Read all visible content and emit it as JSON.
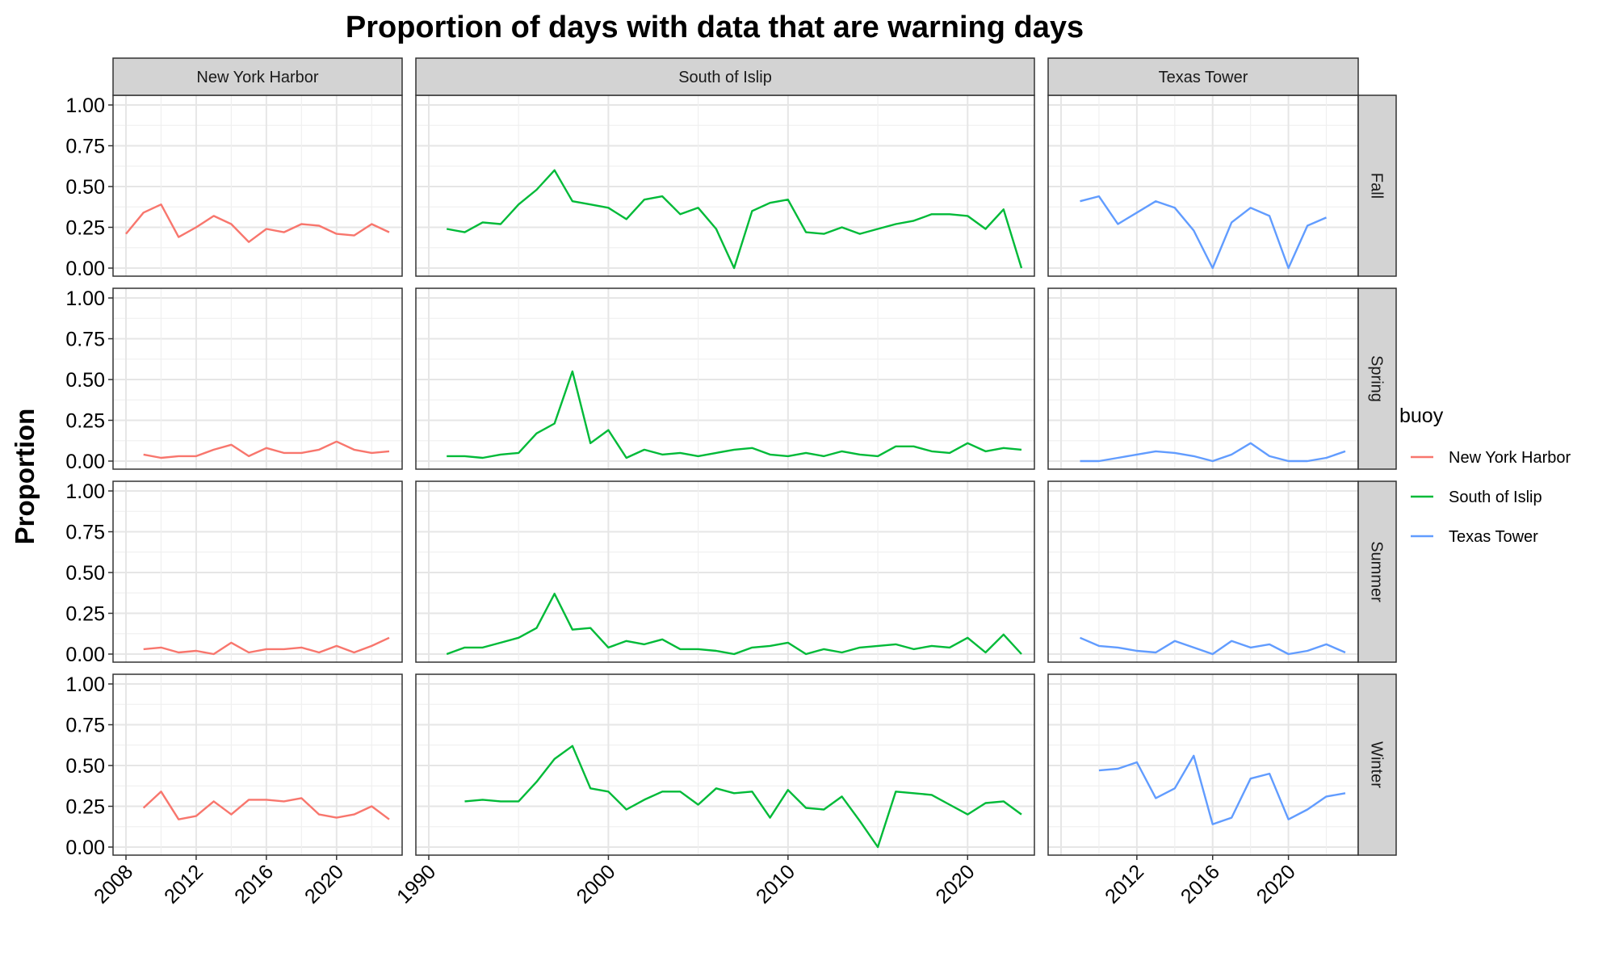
{
  "chart_data": {
    "type": "line",
    "title": "Proportion of days with data that are warning days",
    "xlabel": "",
    "ylabel": "Proportion",
    "ylim": [
      0,
      1
    ],
    "y_ticks": [
      "0.00",
      "0.25",
      "0.50",
      "0.75",
      "1.00"
    ],
    "grid": true,
    "legend": {
      "title": "buoy",
      "position": "right",
      "entries": [
        {
          "name": "New York Harbor",
          "color": "#F8766D"
        },
        {
          "name": "South of Islip",
          "color": "#00BA38"
        },
        {
          "name": "Texas Tower",
          "color": "#619CFF"
        }
      ]
    },
    "facet_columns": [
      {
        "name": "New York Harbor",
        "xlim": [
          2008,
          2023
        ],
        "x_ticks": [
          2008,
          2012,
          2016,
          2020
        ]
      },
      {
        "name": "South of Islip",
        "xlim": [
          1990,
          2023
        ],
        "x_ticks": [
          1990,
          2000,
          2010,
          2020
        ]
      },
      {
        "name": "Texas Tower",
        "xlim": [
          2008,
          2023
        ],
        "x_ticks": [
          2012,
          2016,
          2020
        ]
      }
    ],
    "facet_rows": [
      "Fall",
      "Spring",
      "Summer",
      "Winter"
    ],
    "series": [
      {
        "name": "New York Harbor",
        "facet_row": "Fall",
        "x": [
          2008,
          2009,
          2010,
          2011,
          2012,
          2013,
          2014,
          2015,
          2016,
          2017,
          2018,
          2019,
          2020,
          2021,
          2022,
          2023
        ],
        "y": [
          0.21,
          0.34,
          0.39,
          0.19,
          0.25,
          0.32,
          0.27,
          0.16,
          0.24,
          0.22,
          0.27,
          0.26,
          0.21,
          0.2,
          0.27,
          0.22
        ]
      },
      {
        "name": "New York Harbor",
        "facet_row": "Spring",
        "x": [
          2009,
          2010,
          2011,
          2012,
          2013,
          2014,
          2015,
          2016,
          2017,
          2018,
          2019,
          2020,
          2021,
          2022,
          2023
        ],
        "y": [
          0.04,
          0.02,
          0.03,
          0.03,
          0.07,
          0.1,
          0.03,
          0.08,
          0.05,
          0.05,
          0.07,
          0.12,
          0.07,
          0.05,
          0.06
        ]
      },
      {
        "name": "New York Harbor",
        "facet_row": "Summer",
        "x": [
          2009,
          2010,
          2011,
          2012,
          2013,
          2014,
          2015,
          2016,
          2017,
          2018,
          2019,
          2020,
          2021,
          2022,
          2023
        ],
        "y": [
          0.03,
          0.04,
          0.01,
          0.02,
          0.0,
          0.07,
          0.01,
          0.03,
          0.03,
          0.04,
          0.01,
          0.05,
          0.01,
          0.05,
          0.1
        ]
      },
      {
        "name": "New York Harbor",
        "facet_row": "Winter",
        "x": [
          2009,
          2010,
          2011,
          2012,
          2013,
          2014,
          2015,
          2016,
          2017,
          2018,
          2019,
          2020,
          2021,
          2022,
          2023
        ],
        "y": [
          0.24,
          0.34,
          0.17,
          0.19,
          0.28,
          0.2,
          0.29,
          0.29,
          0.28,
          0.3,
          0.2,
          0.18,
          0.2,
          0.25,
          0.17
        ]
      },
      {
        "name": "South of Islip",
        "facet_row": "Fall",
        "x": [
          1991,
          1992,
          1993,
          1994,
          1995,
          1996,
          1997,
          1998,
          1999,
          2000,
          2001,
          2002,
          2003,
          2004,
          2005,
          2006,
          2007,
          2008,
          2009,
          2010,
          2011,
          2012,
          2013,
          2014,
          2015,
          2016,
          2017,
          2018,
          2019,
          2020,
          2021,
          2022,
          2023
        ],
        "y": [
          0.24,
          0.22,
          0.28,
          0.27,
          0.39,
          0.48,
          0.6,
          0.41,
          0.39,
          0.37,
          0.3,
          0.42,
          0.44,
          0.33,
          0.37,
          0.24,
          0.0,
          0.35,
          0.4,
          0.42,
          0.22,
          0.21,
          0.25,
          0.21,
          0.24,
          0.27,
          0.29,
          0.33,
          0.33,
          0.32,
          0.24,
          0.36,
          0.0
        ]
      },
      {
        "name": "South of Islip",
        "facet_row": "Spring",
        "x": [
          1991,
          1992,
          1993,
          1994,
          1995,
          1996,
          1997,
          1998,
          1999,
          2000,
          2001,
          2002,
          2003,
          2004,
          2005,
          2006,
          2007,
          2008,
          2009,
          2010,
          2011,
          2012,
          2013,
          2014,
          2015,
          2016,
          2017,
          2018,
          2019,
          2020,
          2021,
          2022,
          2023
        ],
        "y": [
          0.03,
          0.03,
          0.02,
          0.04,
          0.05,
          0.17,
          0.23,
          0.55,
          0.11,
          0.19,
          0.02,
          0.07,
          0.04,
          0.05,
          0.03,
          0.05,
          0.07,
          0.08,
          0.04,
          0.03,
          0.05,
          0.03,
          0.06,
          0.04,
          0.03,
          0.09,
          0.09,
          0.06,
          0.05,
          0.11,
          0.06,
          0.08,
          0.07
        ]
      },
      {
        "name": "South of Islip",
        "facet_row": "Summer",
        "x": [
          1991,
          1992,
          1993,
          1994,
          1995,
          1996,
          1997,
          1998,
          1999,
          2000,
          2001,
          2002,
          2003,
          2004,
          2005,
          2006,
          2007,
          2008,
          2009,
          2010,
          2011,
          2012,
          2013,
          2014,
          2015,
          2016,
          2017,
          2018,
          2019,
          2020,
          2021,
          2022,
          2023
        ],
        "y": [
          0.0,
          0.04,
          0.04,
          0.07,
          0.1,
          0.16,
          0.37,
          0.15,
          0.16,
          0.04,
          0.08,
          0.06,
          0.09,
          0.03,
          0.03,
          0.02,
          0.0,
          0.04,
          0.05,
          0.07,
          0.0,
          0.03,
          0.01,
          0.04,
          0.05,
          0.06,
          0.03,
          0.05,
          0.04,
          0.1,
          0.01,
          0.12,
          0.0
        ]
      },
      {
        "name": "South of Islip",
        "facet_row": "Winter",
        "x": [
          1992,
          1993,
          1994,
          1995,
          1996,
          1997,
          1998,
          1999,
          2000,
          2001,
          2002,
          2003,
          2004,
          2005,
          2006,
          2007,
          2008,
          2009,
          2010,
          2011,
          2012,
          2013,
          2014,
          2015,
          2016,
          2017,
          2018,
          2019,
          2020,
          2021,
          2022,
          2023
        ],
        "y": [
          0.28,
          0.29,
          0.28,
          0.28,
          0.4,
          0.54,
          0.62,
          0.36,
          0.34,
          0.23,
          0.29,
          0.34,
          0.34,
          0.26,
          0.36,
          0.33,
          0.34,
          0.18,
          0.35,
          0.24,
          0.23,
          0.31,
          0.16,
          0.0,
          0.34,
          0.33,
          0.32,
          0.26,
          0.2,
          0.27,
          0.28,
          0.2
        ]
      },
      {
        "name": "Texas Tower",
        "facet_row": "Fall",
        "x": [
          2009,
          2010,
          2011,
          2012,
          2013,
          2014,
          2015,
          2016,
          2017,
          2018,
          2019,
          2020,
          2021,
          2022
        ],
        "y": [
          0.41,
          0.44,
          0.27,
          0.34,
          0.41,
          0.37,
          0.23,
          0.0,
          0.28,
          0.37,
          0.32,
          0.0,
          0.26,
          0.31
        ]
      },
      {
        "name": "Texas Tower",
        "facet_row": "Spring",
        "x": [
          2009,
          2010,
          2011,
          2012,
          2013,
          2014,
          2015,
          2016,
          2017,
          2018,
          2019,
          2020,
          2021,
          2022,
          2023
        ],
        "y": [
          0.0,
          0.0,
          0.02,
          0.04,
          0.06,
          0.05,
          0.03,
          0.0,
          0.04,
          0.11,
          0.03,
          0.0,
          0.0,
          0.02,
          0.06
        ]
      },
      {
        "name": "Texas Tower",
        "facet_row": "Summer",
        "x": [
          2009,
          2010,
          2011,
          2012,
          2013,
          2014,
          2015,
          2016,
          2017,
          2018,
          2019,
          2020,
          2021,
          2022,
          2023
        ],
        "y": [
          0.1,
          0.05,
          0.04,
          0.02,
          0.01,
          0.08,
          0.04,
          0.0,
          0.08,
          0.04,
          0.06,
          0.0,
          0.02,
          0.06,
          0.01
        ]
      },
      {
        "name": "Texas Tower",
        "facet_row": "Winter",
        "x": [
          2010,
          2011,
          2012,
          2013,
          2014,
          2015,
          2016,
          2017,
          2018,
          2019,
          2020,
          2021,
          2022,
          2023
        ],
        "y": [
          0.47,
          0.48,
          0.52,
          0.3,
          0.36,
          0.56,
          0.14,
          0.18,
          0.42,
          0.45,
          0.17,
          0.23,
          0.31,
          0.33
        ]
      }
    ]
  }
}
